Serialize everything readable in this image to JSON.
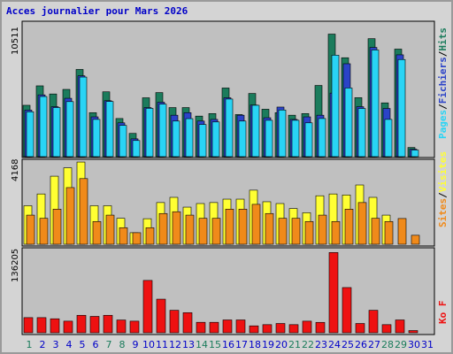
{
  "title": "Acces journalier pour Mars 2026",
  "colors": {
    "hits": "#1b7c5c",
    "files": "#2b43c8",
    "pages": "#29d4f5",
    "visits": "#ffff33",
    "sites": "#f08a1a",
    "kbytes": "#ee1111",
    "weekend": "#1b7c5c",
    "weekday": "#0000c8"
  },
  "chart_data": [
    {
      "type": "bar",
      "name": "pages-files-hits",
      "max_label": "10511",
      "ylim": [
        0,
        10511
      ],
      "categories": [
        "1",
        "2",
        "3",
        "4",
        "5",
        "6",
        "7",
        "8",
        "9",
        "10",
        "11",
        "12",
        "13",
        "14",
        "15",
        "16",
        "17",
        "18",
        "19",
        "20",
        "21",
        "22",
        "23",
        "24",
        "25",
        "26",
        "27",
        "28",
        "29",
        "30",
        "31"
      ],
      "series": [
        {
          "name": "Hits",
          "values": [
            4040,
            5570,
            4930,
            5290,
            6860,
            3460,
            5100,
            3000,
            1830,
            4630,
            5040,
            3860,
            3860,
            3190,
            3390,
            5400,
            3310,
            4970,
            3730,
            3460,
            3260,
            3390,
            5600,
            9640,
            7780,
            4640,
            9280,
            4230,
            8460,
            720,
            0
          ]
        },
        {
          "name": "Fichiers",
          "values": [
            3660,
            4860,
            3930,
            4590,
            6360,
            3130,
            4400,
            2660,
            1400,
            3860,
            4280,
            3260,
            3460,
            2800,
            2930,
            4630,
            3260,
            4060,
            3060,
            3900,
            2930,
            3130,
            3260,
            5000,
            7310,
            3930,
            8590,
            3790,
            8010,
            590,
            0
          ]
        },
        {
          "name": "Pages",
          "values": [
            3530,
            4730,
            3860,
            4330,
            6260,
            2930,
            4340,
            2460,
            1270,
            3800,
            4130,
            2800,
            2990,
            2530,
            2730,
            4530,
            2800,
            4040,
            2860,
            3670,
            2860,
            2660,
            3000,
            7980,
            5400,
            3790,
            8390,
            2930,
            7640,
            520,
            0
          ]
        }
      ]
    },
    {
      "type": "bar",
      "name": "visits-sites",
      "max_label": "4168",
      "ylim": [
        0,
        4168
      ],
      "series": [
        {
          "name": "Visites",
          "values": [
            1930,
            2520,
            3410,
            3830,
            4120,
            1930,
            1930,
            1300,
            580,
            1280,
            2090,
            2350,
            1860,
            2040,
            2090,
            2260,
            2260,
            2710,
            2130,
            2040,
            1790,
            1580,
            2430,
            2520,
            2470,
            2970,
            2350,
            1460,
            0,
            0,
            0
          ]
        },
        {
          "name": "Sites",
          "values": [
            1460,
            1300,
            1760,
            2840,
            3290,
            1140,
            1460,
            830,
            580,
            830,
            1540,
            1630,
            1460,
            1300,
            1300,
            1760,
            1760,
            2000,
            1540,
            1300,
            1300,
            1140,
            1460,
            1140,
            1760,
            2090,
            1300,
            1140,
            1290,
            450,
            0
          ]
        }
      ]
    },
    {
      "type": "bar",
      "name": "kbytes",
      "max_label": "136205",
      "ylim": [
        0,
        136205
      ],
      "series": [
        {
          "name": "Ko F",
          "values": [
            24800,
            24800,
            22900,
            19000,
            28600,
            26800,
            28600,
            20900,
            19000,
            85700,
            55000,
            36800,
            32900,
            17100,
            17100,
            21000,
            21000,
            11300,
            13300,
            15200,
            13300,
            19000,
            17000,
            131400,
            74000,
            15200,
            36800,
            13300,
            21000,
            3600,
            0
          ]
        }
      ]
    }
  ]
}
